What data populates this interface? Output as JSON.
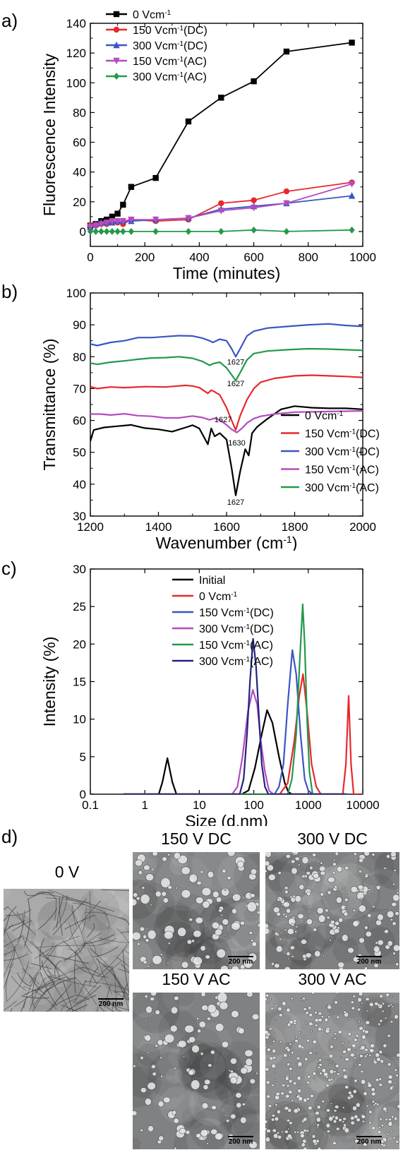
{
  "panels": {
    "a": {
      "label": "a)"
    },
    "b": {
      "label": "b)"
    },
    "c": {
      "label": "c)"
    },
    "d": {
      "label": "d)"
    }
  },
  "chart_data": [
    {
      "type": "line",
      "xlabel": "Time (minutes)",
      "ylabel": "Fluorescence Intensity",
      "xlim": [
        0,
        1000
      ],
      "ylim": [
        -10,
        140
      ],
      "xticks": [
        0,
        200,
        400,
        600,
        800,
        1000
      ],
      "yticks": [
        0,
        20,
        40,
        60,
        80,
        100,
        120,
        140
      ],
      "legend": "top-left",
      "series": [
        {
          "name": "0 Vcm⁻¹",
          "color": "#000000",
          "marker": "square",
          "x": [
            0,
            20,
            40,
            60,
            80,
            100,
            120,
            150,
            240,
            360,
            480,
            600,
            720,
            960
          ],
          "y": [
            4,
            5,
            7,
            8,
            10,
            12,
            18,
            30,
            36,
            74,
            90,
            101,
            121,
            127
          ]
        },
        {
          "name": "150 Vcm⁻¹(DC)",
          "color": "#e8282b",
          "marker": "circle",
          "x": [
            0,
            20,
            40,
            60,
            80,
            100,
            120,
            150,
            240,
            360,
            480,
            600,
            720,
            960
          ],
          "y": [
            4,
            4,
            5,
            5,
            6,
            6,
            5,
            8,
            7,
            8,
            19,
            21,
            27,
            33
          ]
        },
        {
          "name": "300 Vcm⁻¹(DC)",
          "color": "#3b56c4",
          "marker": "triangle-up",
          "x": [
            0,
            20,
            40,
            60,
            80,
            100,
            120,
            150,
            240,
            360,
            480,
            600,
            720,
            960
          ],
          "y": [
            3,
            5,
            6,
            6,
            6,
            7,
            7,
            7,
            8,
            9,
            15,
            17,
            19,
            24
          ]
        },
        {
          "name": "150 Vcm⁻¹(AC)",
          "color": "#b54bbf",
          "marker": "triangle-down",
          "x": [
            0,
            20,
            40,
            60,
            80,
            100,
            120,
            150,
            240,
            360,
            480,
            600,
            720,
            960
          ],
          "y": [
            3,
            4,
            5,
            6,
            7,
            7,
            7,
            8,
            8,
            9,
            14,
            16,
            19,
            32
          ]
        },
        {
          "name": "300 Vcm⁻¹(AC)",
          "color": "#23994b",
          "marker": "diamond",
          "x": [
            0,
            20,
            40,
            60,
            80,
            100,
            120,
            150,
            240,
            360,
            480,
            600,
            720,
            960
          ],
          "y": [
            0,
            0,
            0,
            0,
            0,
            0,
            0,
            0,
            0,
            0,
            0,
            1,
            0,
            1
          ]
        }
      ]
    },
    {
      "type": "line",
      "xlabel": "Wavenumber (cm⁻¹)",
      "ylabel": "Transmittance (%)",
      "xlim": [
        1200,
        2000
      ],
      "ylim": [
        30,
        100
      ],
      "xticks": [
        1200,
        1400,
        1600,
        1800,
        2000
      ],
      "yticks": [
        30,
        40,
        50,
        60,
        70,
        80,
        90,
        100
      ],
      "legend": "bottom-right",
      "annotations": [
        {
          "text": "1627",
          "x": 1627,
          "y": 77.5
        },
        {
          "text": "1627",
          "x": 1627,
          "y": 70.8
        },
        {
          "text": "1627",
          "x": 1590,
          "y": 59.5
        },
        {
          "text": "1630",
          "x": 1630,
          "y": 52.2
        },
        {
          "text": "1627",
          "x": 1627,
          "y": 33.5
        }
      ],
      "series": [
        {
          "name": "0 Vcm⁻¹",
          "color": "#000000",
          "x": [
            1200,
            1210,
            1240,
            1280,
            1320,
            1360,
            1400,
            1440,
            1480,
            1500,
            1520,
            1545,
            1555,
            1565,
            1580,
            1600,
            1615,
            1627,
            1640,
            1655,
            1665,
            1675,
            1690,
            1720,
            1760,
            1800,
            1850,
            1900,
            1950,
            2000
          ],
          "y": [
            53.5,
            57,
            57.8,
            58.2,
            58.6,
            57.6,
            57.2,
            56.5,
            57.8,
            58.5,
            57.5,
            52.5,
            57.5,
            55,
            56,
            54,
            45,
            36.5,
            44,
            51,
            49,
            56,
            58,
            60.5,
            63.5,
            64.5,
            64,
            63.8,
            63.8,
            63.5
          ]
        },
        {
          "name": "150 Vcm⁻¹(DC)",
          "color": "#e8282b",
          "x": [
            1200,
            1220,
            1260,
            1300,
            1360,
            1420,
            1480,
            1500,
            1520,
            1545,
            1555,
            1565,
            1580,
            1600,
            1615,
            1627,
            1640,
            1660,
            1680,
            1700,
            1740,
            1800,
            1850,
            1900,
            1950,
            2000
          ],
          "y": [
            70.6,
            70,
            70.5,
            70.3,
            70.6,
            70.5,
            71,
            70.8,
            70.3,
            68.5,
            69.5,
            69,
            68,
            64,
            60,
            57,
            61.5,
            66.5,
            70,
            72,
            73.2,
            74,
            74.2,
            74,
            73.8,
            73.5
          ]
        },
        {
          "name": "300 Vcm⁻¹(DC)",
          "color": "#3b56c4",
          "x": [
            1200,
            1220,
            1260,
            1300,
            1340,
            1380,
            1420,
            1460,
            1500,
            1530,
            1550,
            1560,
            1580,
            1600,
            1615,
            1627,
            1640,
            1660,
            1680,
            1720,
            1780,
            1840,
            1900,
            1950,
            2000
          ],
          "y": [
            84,
            83.5,
            84.5,
            85,
            86,
            86,
            86.3,
            86.6,
            86.5,
            85.8,
            85,
            84.5,
            85.5,
            85,
            82.5,
            80,
            82.5,
            86.5,
            88,
            89,
            89.5,
            90,
            90.3,
            89.8,
            89.5
          ]
        },
        {
          "name": "150 Vcm⁻¹(AC)",
          "color": "#b54bbf",
          "x": [
            1200,
            1230,
            1260,
            1300,
            1340,
            1380,
            1420,
            1460,
            1500,
            1530,
            1550,
            1565,
            1580,
            1600,
            1615,
            1630,
            1645,
            1660,
            1680,
            1700,
            1740,
            1800,
            1850,
            1900,
            1950,
            2000
          ],
          "y": [
            62,
            62,
            61.7,
            62.1,
            61.5,
            61.3,
            60.8,
            60.8,
            61.4,
            60.9,
            60.2,
            60.7,
            60.1,
            58.6,
            57.2,
            56.2,
            57.5,
            59.2,
            60.6,
            61.3,
            62,
            62.6,
            62.7,
            62.8,
            62.9,
            63
          ]
        },
        {
          "name": "300 Vcm⁻¹(AC)",
          "color": "#23994b",
          "x": [
            1200,
            1220,
            1260,
            1300,
            1340,
            1380,
            1420,
            1460,
            1500,
            1530,
            1550,
            1560,
            1580,
            1600,
            1615,
            1627,
            1640,
            1660,
            1680,
            1720,
            1780,
            1840,
            1900,
            1950,
            2000
          ],
          "y": [
            78,
            77.6,
            78.3,
            78.7,
            79.2,
            79.6,
            79.7,
            80,
            79.5,
            78.5,
            77.3,
            77.8,
            78.3,
            76.5,
            74.3,
            72.5,
            75,
            79,
            81,
            81.8,
            82.2,
            82.5,
            82.4,
            82.2,
            82
          ]
        }
      ]
    },
    {
      "type": "line",
      "xlabel": "Size (d.nm)",
      "ylabel": "Intensity (%)",
      "xscale": "log",
      "xlim": [
        0.1,
        10000
      ],
      "ylim": [
        0,
        30
      ],
      "xticks": [
        0.1,
        1,
        10,
        100,
        1000,
        10000
      ],
      "xticklabels": [
        "0.1",
        "1",
        "10",
        "100",
        "1000",
        "10000"
      ],
      "yticks": [
        0,
        5,
        10,
        15,
        20,
        25,
        30
      ],
      "legend": "top-left",
      "series": [
        {
          "name": "Initial",
          "color": "#000000",
          "x": [
            0.4,
            1.8,
            2.1,
            2.6,
            3.2,
            3.8,
            60,
            80,
            105,
            140,
            175,
            220,
            290,
            370,
            430,
            500,
            2000,
            5000
          ],
          "y": [
            0,
            0,
            1.6,
            4.8,
            1.6,
            0,
            0,
            0.5,
            3.5,
            8,
            11.2,
            9.5,
            5,
            1.5,
            0.3,
            0,
            0,
            0
          ]
        },
        {
          "name": "0 Vcm⁻¹",
          "color": "#e8282b",
          "x": [
            0.4,
            300,
            420,
            550,
            680,
            800,
            950,
            1150,
            1400,
            1700,
            4300,
            4900,
            5500,
            6100,
            6800,
            10000
          ],
          "y": [
            0,
            0,
            1.5,
            7,
            13,
            16,
            11,
            4,
            1,
            0,
            0,
            4,
            13.1,
            4,
            0,
            0
          ]
        },
        {
          "name": "150 Vcm⁻¹(DC)",
          "color": "#3b56c4",
          "x": [
            0.4,
            240,
            290,
            350,
            420,
            510,
            600,
            720,
            860,
            1000,
            1200,
            5000
          ],
          "y": [
            0,
            0,
            1,
            4,
            12,
            19.2,
            16,
            8,
            2,
            0.5,
            0,
            0
          ]
        },
        {
          "name": "300 Vcm⁻¹(DC)",
          "color": "#b54bbf",
          "x": [
            0.4,
            40,
            50,
            62,
            78,
            96,
            115,
            135,
            160,
            190,
            230,
            5000
          ],
          "y": [
            0,
            0,
            1,
            5,
            11,
            13.9,
            12,
            7,
            3,
            0.5,
            0,
            0
          ]
        },
        {
          "name": "150 Vcm⁻¹(AC)",
          "color": "#23994b",
          "x": [
            0.4,
            420,
            500,
            600,
            700,
            790,
            860,
            950,
            1050,
            1200,
            5000
          ],
          "y": [
            0,
            0,
            2,
            8,
            18,
            25.3,
            20,
            10,
            3,
            0,
            0
          ]
        },
        {
          "name": "300 Vcm⁻¹(AC)",
          "color": "#22237d",
          "x": [
            0.4,
            55,
            65,
            75,
            85,
            97,
            110,
            125,
            140,
            160,
            185,
            5000
          ],
          "y": [
            0,
            0,
            2,
            8,
            15,
            20.7,
            17,
            10,
            4,
            1,
            0,
            0
          ]
        }
      ]
    }
  ],
  "tem_images": [
    {
      "id": "0v",
      "title": "0 V",
      "scale": "200 nm",
      "style": "fibrils"
    },
    {
      "id": "150dc",
      "title": "150 V DC",
      "scale": "200 nm",
      "style": "large-dots"
    },
    {
      "id": "300dc",
      "title": "300 V DC",
      "scale": "200 nm",
      "style": "medium-dots"
    },
    {
      "id": "150ac",
      "title": "150 V AC",
      "scale": "200 nm",
      "style": "large-dots"
    },
    {
      "id": "300ac",
      "title": "300 V AC",
      "scale": "200 nm",
      "style": "small-dots"
    }
  ]
}
